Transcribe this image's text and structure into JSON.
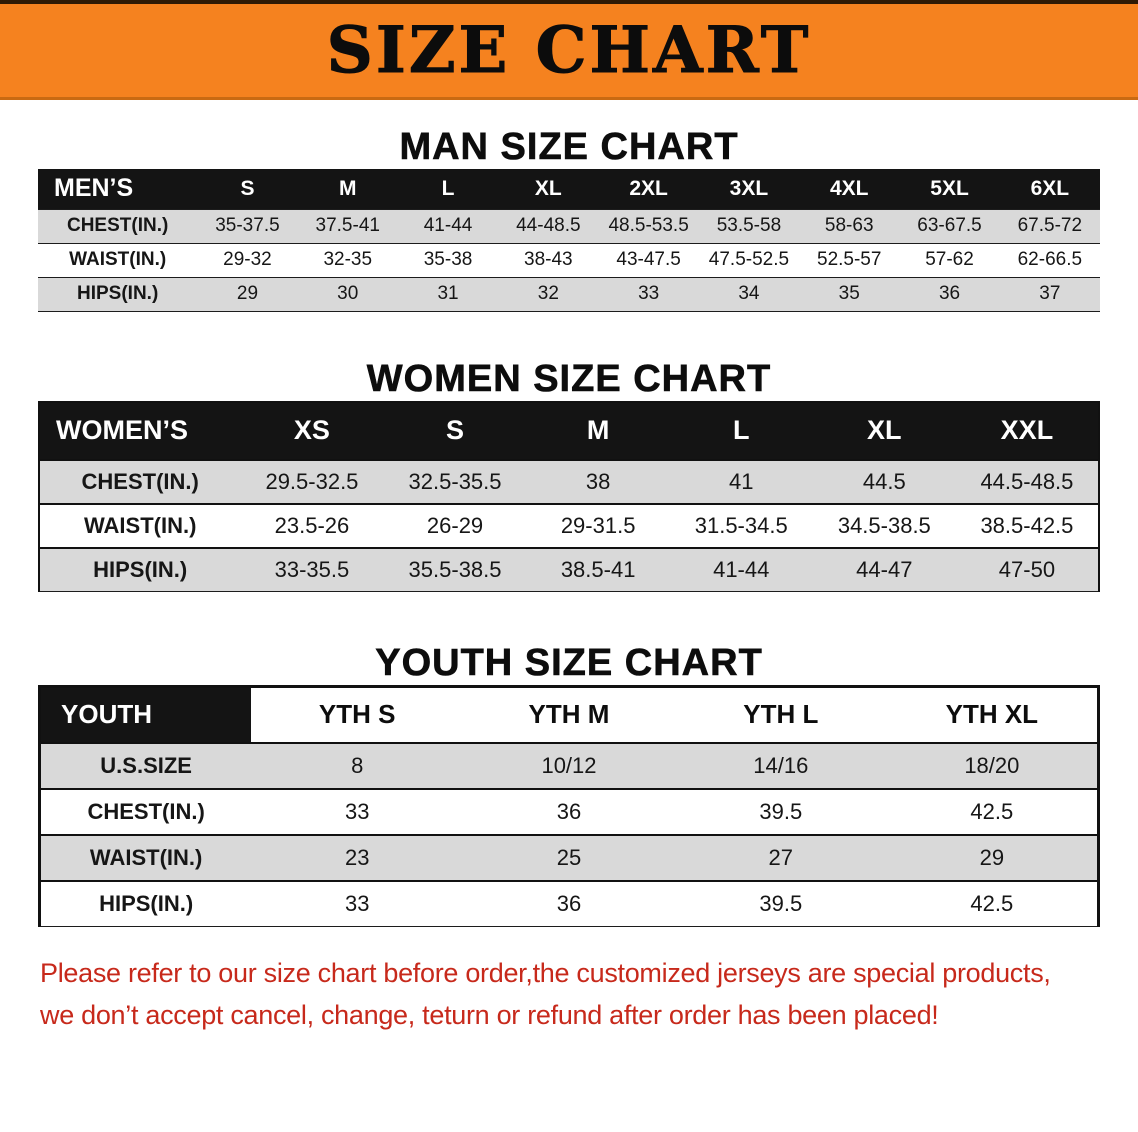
{
  "banner": {
    "title": "SIZE CHART"
  },
  "colors": {
    "banner_bg": "#f5821f",
    "header_bg": "#141414",
    "shaded_row": "#d9d9d9",
    "footer_text": "#c7291b"
  },
  "chart_data": [
    {
      "type": "table",
      "title": "MAN SIZE CHART",
      "group_label": "MEN’S",
      "columns": [
        "S",
        "M",
        "L",
        "XL",
        "2XL",
        "3XL",
        "4XL",
        "5XL",
        "6XL"
      ],
      "rows": [
        {
          "label": "CHEST(IN.)",
          "values": [
            "35-37.5",
            "37.5-41",
            "41-44",
            "44-48.5",
            "48.5-53.5",
            "53.5-58",
            "58-63",
            "63-67.5",
            "67.5-72"
          ]
        },
        {
          "label": "WAIST(IN.)",
          "values": [
            "29-32",
            "32-35",
            "35-38",
            "38-43",
            "43-47.5",
            "47.5-52.5",
            "52.5-57",
            "57-62",
            "62-66.5"
          ]
        },
        {
          "label": "HIPS(IN.)",
          "values": [
            "29",
            "30",
            "31",
            "32",
            "33",
            "34",
            "35",
            "36",
            "37"
          ]
        }
      ]
    },
    {
      "type": "table",
      "title": "WOMEN SIZE CHART",
      "group_label": "WOMEN’S",
      "columns": [
        "XS",
        "S",
        "M",
        "L",
        "XL",
        "XXL"
      ],
      "rows": [
        {
          "label": "CHEST(IN.)",
          "values": [
            "29.5-32.5",
            "32.5-35.5",
            "38",
            "41",
            "44.5",
            "44.5-48.5"
          ]
        },
        {
          "label": "WAIST(IN.)",
          "values": [
            "23.5-26",
            "26-29",
            "29-31.5",
            "31.5-34.5",
            "34.5-38.5",
            "38.5-42.5"
          ]
        },
        {
          "label": "HIPS(IN.)",
          "values": [
            "33-35.5",
            "35.5-38.5",
            "38.5-41",
            "41-44",
            "44-47",
            "47-50"
          ]
        }
      ]
    },
    {
      "type": "table",
      "title": "YOUTH SIZE CHART",
      "group_label": "YOUTH",
      "columns": [
        "YTH S",
        "YTH M",
        "YTH L",
        "YTH XL"
      ],
      "rows": [
        {
          "label": "U.S.SIZE",
          "values": [
            "8",
            "10/12",
            "14/16",
            "18/20"
          ]
        },
        {
          "label": "CHEST(IN.)",
          "values": [
            "33",
            "36",
            "39.5",
            "42.5"
          ]
        },
        {
          "label": "WAIST(IN.)",
          "values": [
            "23",
            "25",
            "27",
            "29"
          ]
        },
        {
          "label": "HIPS(IN.)",
          "values": [
            "33",
            "36",
            "39.5",
            "42.5"
          ]
        }
      ]
    }
  ],
  "footer": {
    "line1": "Please refer to our size chart before order,the customized jerseys are special products,",
    "line2": "we don’t accept cancel, change, teturn or refund after order has been placed!"
  }
}
